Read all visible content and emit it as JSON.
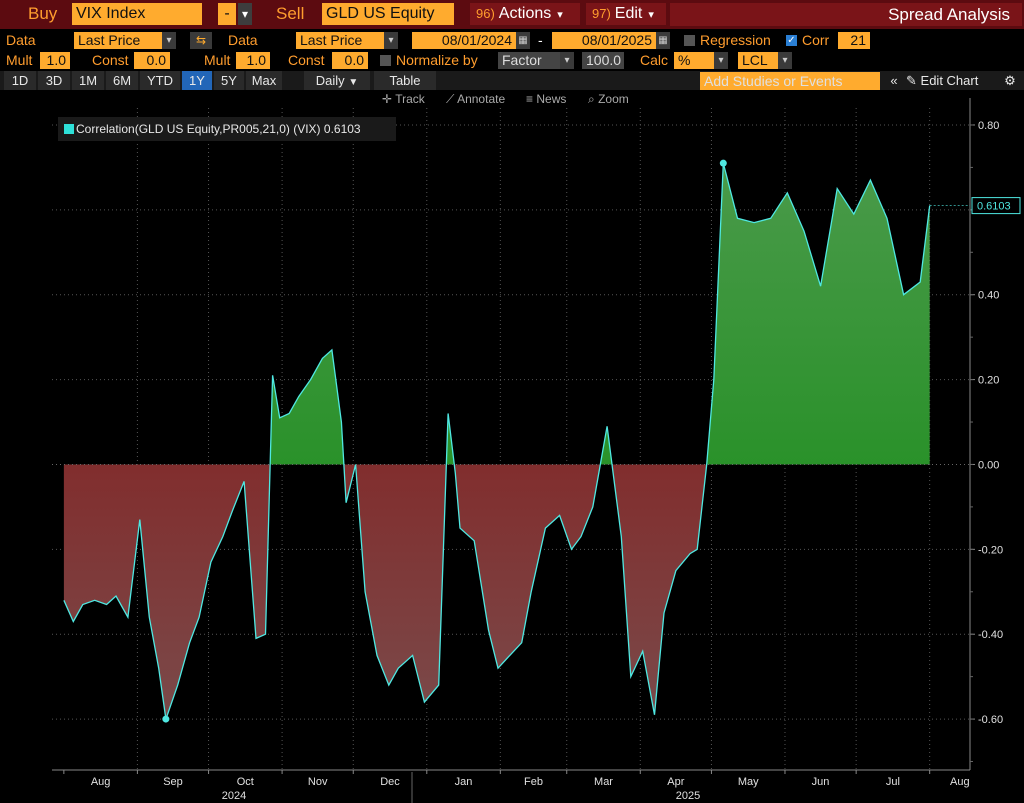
{
  "header": {
    "buy_label": "Buy",
    "buy_ticker": "VIX Index",
    "minus": "-",
    "sell_label": "Sell",
    "sell_ticker": "GLD US Equity",
    "actions_num": "96)",
    "actions_label": "Actions",
    "edit_num": "97)",
    "edit_label": "Edit",
    "spread_title": "Spread Analysis"
  },
  "settings": {
    "data_label_1": "Data",
    "data_value_1": "Last Price",
    "data_label_2": "Data",
    "data_value_2": "Last Price",
    "start_date": "08/01/2024",
    "dash": "-",
    "end_date": "08/01/2025",
    "regression_label": "Regression",
    "corr_label": "Corr",
    "corr_value": "21",
    "mult_label_1": "Mult",
    "mult_value_1": "1.0",
    "const_label_1": "Const",
    "const_value_1": "0.0",
    "mult_label_2": "Mult",
    "mult_value_2": "1.0",
    "const_label_2": "Const",
    "const_value_2": "0.0",
    "normalize_label": "Normalize by",
    "normalize_value": "Factor",
    "factor_value": "100.0",
    "calc_label": "Calc",
    "calc_value": "%",
    "currency_value": "LCL"
  },
  "periods": [
    "1D",
    "3D",
    "1M",
    "6M",
    "YTD",
    "1Y",
    "5Y",
    "Max"
  ],
  "selected_period": "1Y",
  "toolbar": {
    "daily_label": "Daily",
    "table_label": "Table",
    "studies_placeholder": "Add Studies or Events",
    "collapse_icon": "«",
    "edit_chart_label": "Edit Chart",
    "track_label": "Track",
    "annotate_label": "Annotate",
    "news_label": "News",
    "zoom_label": "Zoom"
  },
  "colors": {
    "line": "#4fe8e2",
    "positive_fill": "#0f8a0f",
    "negative_fill": "#8a0c0c",
    "header_bg": "#5c0b10",
    "field_orange": "#ffab2e"
  },
  "chart_data": {
    "type": "area",
    "series": [
      {
        "name": "Correlation(GLD US Equity,PR005,21,0) (VIX)",
        "last_value_label": "0.6103",
        "x": [
          "2024-08-01",
          "2024-08-05",
          "2024-08-09",
          "2024-08-14",
          "2024-08-19",
          "2024-08-23",
          "2024-08-28",
          "2024-09-02",
          "2024-09-06",
          "2024-09-10",
          "2024-09-13",
          "2024-09-18",
          "2024-09-23",
          "2024-09-27",
          "2024-10-02",
          "2024-10-07",
          "2024-10-11",
          "2024-10-16",
          "2024-10-21",
          "2024-10-25",
          "2024-10-28",
          "2024-10-31",
          "2024-11-04",
          "2024-11-08",
          "2024-11-13",
          "2024-11-18",
          "2024-11-22",
          "2024-11-26",
          "2024-11-28",
          "2024-12-02",
          "2024-12-06",
          "2024-12-11",
          "2024-12-16",
          "2024-12-20",
          "2024-12-26",
          "2024-12-31",
          "2025-01-06",
          "2025-01-10",
          "2025-01-13",
          "2025-01-15",
          "2025-01-21",
          "2025-01-27",
          "2025-01-31",
          "2025-02-05",
          "2025-02-10",
          "2025-02-14",
          "2025-02-20",
          "2025-02-26",
          "2025-03-03",
          "2025-03-07",
          "2025-03-12",
          "2025-03-18",
          "2025-03-24",
          "2025-03-28",
          "2025-04-02",
          "2025-04-07",
          "2025-04-11",
          "2025-04-16",
          "2025-04-22",
          "2025-04-25",
          "2025-04-29",
          "2025-05-02",
          "2025-05-06",
          "2025-05-12",
          "2025-05-19",
          "2025-05-26",
          "2025-06-02",
          "2025-06-09",
          "2025-06-16",
          "2025-06-23",
          "2025-06-30",
          "2025-07-07",
          "2025-07-14",
          "2025-07-21",
          "2025-07-28",
          "2025-08-01"
        ],
        "values": [
          -0.32,
          -0.37,
          -0.33,
          -0.32,
          -0.33,
          -0.31,
          -0.36,
          -0.13,
          -0.36,
          -0.48,
          -0.6,
          -0.52,
          -0.42,
          -0.36,
          -0.23,
          -0.17,
          -0.11,
          -0.04,
          -0.41,
          -0.4,
          0.21,
          0.11,
          0.12,
          0.16,
          0.2,
          0.25,
          0.27,
          0.1,
          -0.09,
          0.0,
          -0.3,
          -0.45,
          -0.52,
          -0.48,
          -0.45,
          -0.56,
          -0.52,
          0.12,
          -0.02,
          -0.15,
          -0.18,
          -0.39,
          -0.48,
          -0.45,
          -0.42,
          -0.3,
          -0.15,
          -0.12,
          -0.2,
          -0.17,
          -0.1,
          0.09,
          -0.17,
          -0.5,
          -0.44,
          -0.59,
          -0.35,
          -0.25,
          -0.21,
          -0.2,
          0.0,
          0.2,
          0.71,
          0.58,
          0.57,
          0.58,
          0.64,
          0.55,
          0.42,
          0.65,
          0.59,
          0.67,
          0.58,
          0.4,
          0.43,
          0.61
        ]
      }
    ],
    "y_ticks": [
      "0.80",
      "0.60",
      "0.40",
      "0.20",
      "0.00",
      "-0.20",
      "-0.40",
      "-0.60"
    ],
    "ylim": [
      -0.72,
      0.84
    ],
    "x_month_labels": [
      "Aug",
      "Sep",
      "Oct",
      "Nov",
      "Dec",
      "Jan",
      "Feb",
      "Mar",
      "Apr",
      "May",
      "Jun",
      "Jul",
      "Aug"
    ],
    "x_year_labels": [
      "2024",
      "2025"
    ],
    "grid": true,
    "legend": "top-left"
  }
}
